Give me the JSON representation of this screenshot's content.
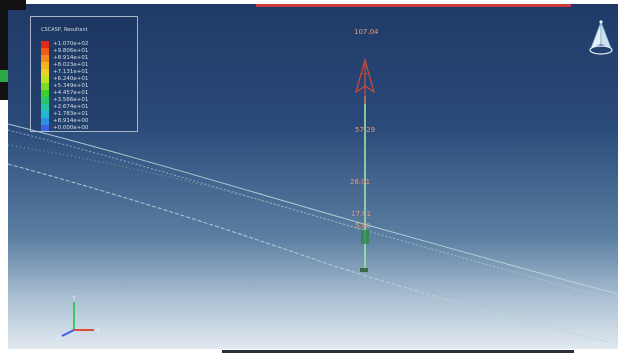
{
  "legend": {
    "title": "CSCASP, Resultant",
    "entries": [
      {
        "value": "+1.070e+02",
        "color": "#e22a1a"
      },
      {
        "value": "+9.806e+01",
        "color": "#ef5a18"
      },
      {
        "value": "+8.914e+01",
        "color": "#f38a1c"
      },
      {
        "value": "+8.023e+01",
        "color": "#f5b41e"
      },
      {
        "value": "+7.131e+01",
        "color": "#e6d322"
      },
      {
        "value": "+6.240e+01",
        "color": "#bce325"
      },
      {
        "value": "+5.349e+01",
        "color": "#7fdb29"
      },
      {
        "value": "+4.457e+01",
        "color": "#3ad12e"
      },
      {
        "value": "+3.566e+01",
        "color": "#27c468"
      },
      {
        "value": "+2.674e+01",
        "color": "#25c4a3"
      },
      {
        "value": "+1.783e+01",
        "color": "#23b8d1"
      },
      {
        "value": "+8.914e+00",
        "color": "#2f8fe0"
      },
      {
        "value": "+0.000e+00",
        "color": "#3b61e6"
      }
    ]
  },
  "annotations": {
    "top_value": "107.04",
    "mid_value_1": "57.29",
    "mid_value_2": "26.01",
    "mid_value_3": "17.01",
    "mid_value_4": "5.40"
  },
  "triad": {
    "x_label": "X",
    "y_label": "Y",
    "z_label": "Z"
  },
  "colors": {
    "arrow": "#d24a3a",
    "line": "#9fe6a0",
    "curve": "#b9d6d9"
  }
}
